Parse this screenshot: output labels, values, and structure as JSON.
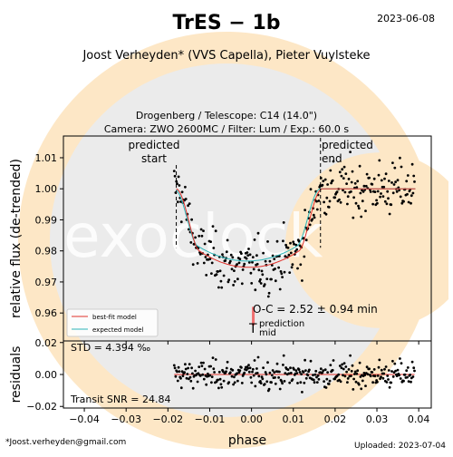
{
  "header": {
    "title": "TrES − 1b",
    "date": "2023-06-08",
    "observers": "Joost Verheyden* (VVS Capella), Pieter Vuylsteke",
    "footnote": "*Joost.verheyden@gmail.com",
    "uploaded": "Uploaded: 2023-07-04"
  },
  "watermark": {
    "text": "exoclock",
    "colors": {
      "orange": "#fde7c6",
      "gray": "#e6e6e6"
    }
  },
  "chart_data": [
    {
      "type": "scatter",
      "title": "Drogenberg / Telescope: C14 (14.0\")",
      "subtitle": "Camera: ZWO 2600MC / Filter: Lum / Exp.: 60.0 s",
      "xlabel": "phase",
      "ylabel": "relative flux (de-trended)",
      "xlim": [
        -0.045,
        0.043
      ],
      "ylim": [
        0.951,
        1.017
      ],
      "yticks": [
        "0.96",
        "0.97",
        "0.98",
        "0.99",
        "1.00",
        "1.01"
      ],
      "xticks": [
        "−0.04",
        "−0.03",
        "−0.02",
        "−0.01",
        "0.00",
        "0.01",
        "0.02",
        "0.03",
        "0.04"
      ],
      "annotations": {
        "predicted_start": [
          "predicted",
          "start"
        ],
        "predicted_end": [
          "predicted",
          "end"
        ],
        "oc": "O-C = 2.52 ± 0.94 min",
        "prediction_mid": [
          "T",
          "prediction",
          "mid"
        ]
      },
      "lines": {
        "predicted_start": -0.018,
        "predicted_end": 0.0165,
        "oc_center": 0.00042,
        "oc_halfwidth": 0.0028,
        "oc_flux": [
          0.956,
          0.962
        ],
        "prediction_mid": 0.0
      },
      "transit_model": {
        "depth": 0.0253,
        "t1": -0.0185,
        "t4": 0.0165,
        "ingress": 0.0055
      },
      "series": [
        {
          "name": "best-fit model",
          "color": "#e0302a"
        },
        {
          "name": "expected model",
          "color": "#2bb5b8"
        },
        {
          "color": "#000000",
          "n_points": 330
        }
      ],
      "legend": "lower-left"
    },
    {
      "type": "scatter",
      "xlabel": "phase",
      "ylabel": "residuals",
      "ylim": [
        -0.021,
        0.021
      ],
      "yticks": [
        "−0.02",
        "0.00",
        "0.02"
      ],
      "annotations": {
        "std": "STD = 4.394 ‰",
        "snr": "Transit SNR = 24.84"
      },
      "series": [
        {
          "name": "zero line",
          "color": "#e0302a"
        }
      ]
    }
  ]
}
